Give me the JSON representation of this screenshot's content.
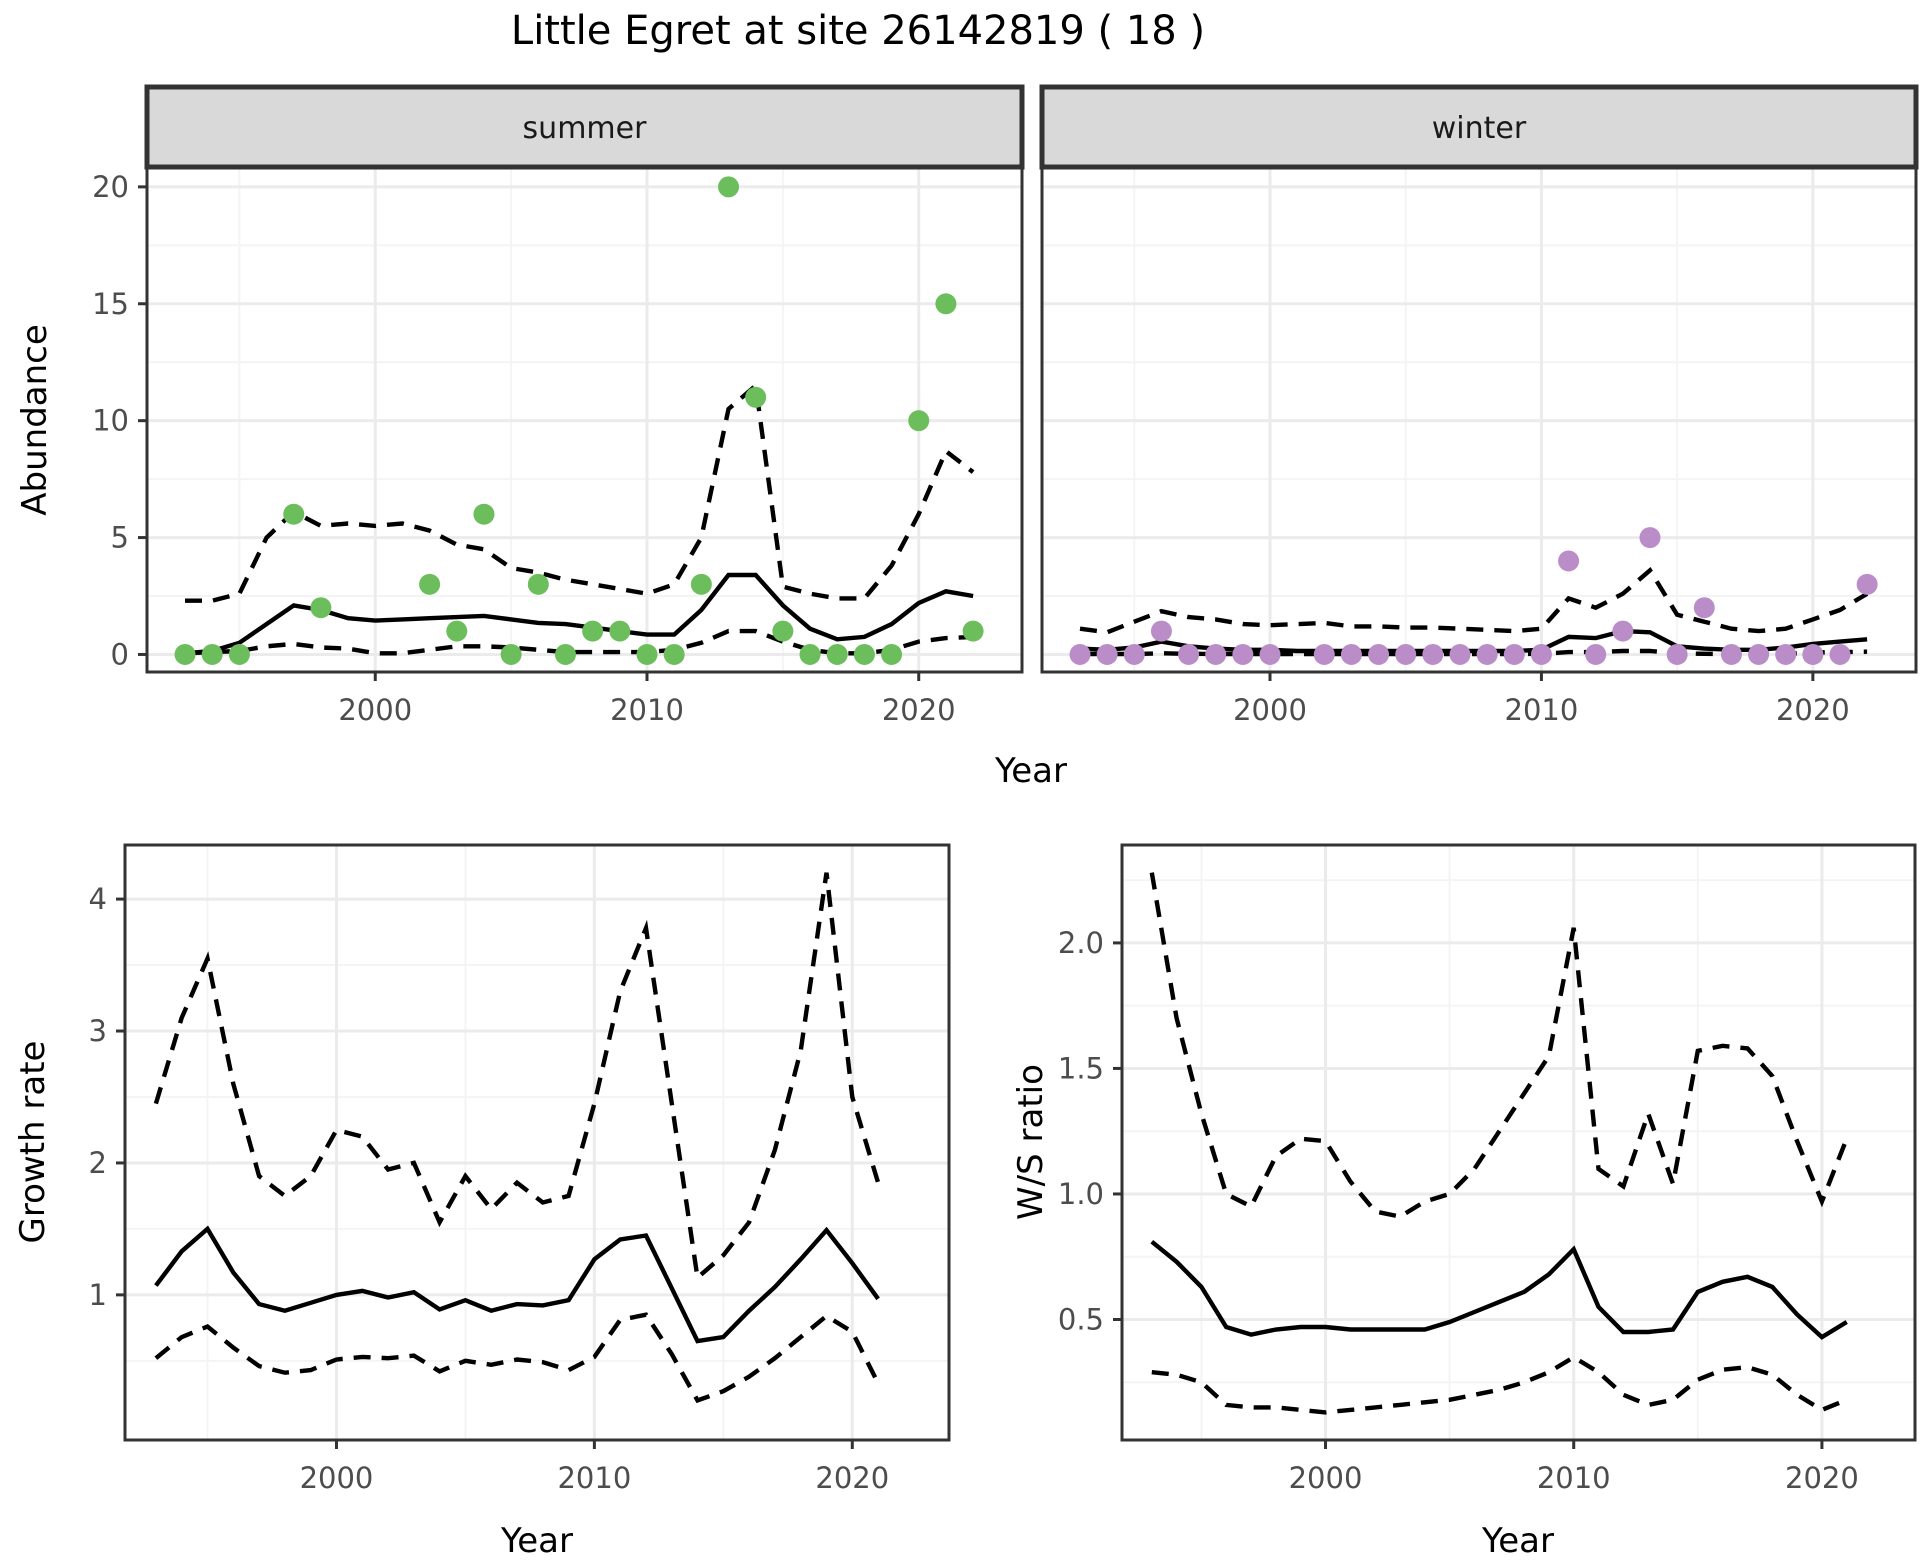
{
  "title": "Little Egret at site 26142819 ( 18 )",
  "colors": {
    "summer_point": "#6cbe5c",
    "winter_point": "#ba8dc9",
    "line": "#000000",
    "strip_fill": "#d9d9d9",
    "panel_border": "#333333",
    "grid_major": "#ebebeb",
    "grid_minor": "#f4f4f4",
    "tick_text": "#4d4d4d"
  },
  "chart_data": [
    {
      "id": "abundance-summer",
      "type": "scatter",
      "facet_label": "summer",
      "ylabel": "Abundance",
      "xlabel": "Year",
      "xlim": [
        1991.6,
        2023.8
      ],
      "ylim": [
        -0.75,
        20.85
      ],
      "xticks": [
        2000,
        2010,
        2020
      ],
      "xtick_labels": [
        "2000",
        "2010",
        "2020"
      ],
      "yticks": [
        0,
        5,
        10,
        15,
        20
      ],
      "ytick_labels": [
        "0",
        "5",
        "10",
        "15",
        "20"
      ],
      "xminor": [
        1995,
        2005,
        2015
      ],
      "yminor": [
        2.5,
        7.5,
        12.5,
        17.5
      ],
      "x": [
        1993,
        1994,
        1995,
        1996,
        1997,
        1998,
        1999,
        2000,
        2001,
        2002,
        2003,
        2004,
        2005,
        2006,
        2007,
        2008,
        2009,
        2010,
        2011,
        2012,
        2013,
        2014,
        2015,
        2016,
        2017,
        2018,
        2019,
        2020,
        2021,
        2022
      ],
      "series": [
        {
          "name": "mean",
          "dash": false,
          "values": [
            0.05,
            0.15,
            0.5,
            1.3,
            2.1,
            1.9,
            1.55,
            1.45,
            1.5,
            1.55,
            1.6,
            1.65,
            1.5,
            1.35,
            1.3,
            1.15,
            1.0,
            0.85,
            0.85,
            1.9,
            3.4,
            3.4,
            2.1,
            1.1,
            0.65,
            0.75,
            1.3,
            2.2,
            2.7,
            2.5
          ]
        },
        {
          "name": "upper-ci",
          "dash": true,
          "values": [
            2.3,
            2.3,
            2.6,
            5.0,
            6.1,
            5.5,
            5.6,
            5.5,
            5.6,
            5.3,
            4.7,
            4.5,
            3.7,
            3.5,
            3.2,
            3.0,
            2.8,
            2.6,
            3.0,
            5.0,
            10.5,
            11.5,
            2.9,
            2.6,
            2.4,
            2.4,
            3.8,
            6.0,
            8.7,
            7.8
          ]
        },
        {
          "name": "lower-ci",
          "dash": true,
          "values": [
            0.05,
            0.1,
            0.15,
            0.35,
            0.45,
            0.3,
            0.25,
            0.05,
            0.05,
            0.2,
            0.35,
            0.35,
            0.3,
            0.2,
            0.1,
            0.1,
            0.1,
            0.1,
            0.2,
            0.5,
            1.0,
            1.0,
            0.55,
            0.2,
            0.05,
            0.05,
            0.2,
            0.55,
            0.7,
            0.75
          ]
        }
      ],
      "points": [
        [
          1993,
          0
        ],
        [
          1994,
          0
        ],
        [
          1995,
          0
        ],
        [
          1997,
          6
        ],
        [
          1998,
          2
        ],
        [
          2002,
          3
        ],
        [
          2003,
          1
        ],
        [
          2004,
          6
        ],
        [
          2005,
          0
        ],
        [
          2006,
          3
        ],
        [
          2007,
          0
        ],
        [
          2008,
          1
        ],
        [
          2009,
          1
        ],
        [
          2010,
          0
        ],
        [
          2011,
          0
        ],
        [
          2012,
          3
        ],
        [
          2013,
          20
        ],
        [
          2014,
          11
        ],
        [
          2015,
          1
        ],
        [
          2016,
          0
        ],
        [
          2017,
          0
        ],
        [
          2018,
          0
        ],
        [
          2019,
          0
        ],
        [
          2020,
          10
        ],
        [
          2021,
          15
        ],
        [
          2022,
          1
        ]
      ],
      "point_color": "#6cbe5c"
    },
    {
      "id": "abundance-winter",
      "type": "scatter",
      "facet_label": "winter",
      "ylabel": "",
      "xlabel": "",
      "xlim": [
        1991.6,
        2023.8
      ],
      "ylim": [
        -0.75,
        20.85
      ],
      "xticks": [
        2000,
        2010,
        2020
      ],
      "xtick_labels": [
        "2000",
        "2010",
        "2020"
      ],
      "yticks": [
        0,
        5,
        10,
        15,
        20
      ],
      "ytick_labels": [
        "0",
        "5",
        "10",
        "15",
        "20"
      ],
      "xminor": [
        1995,
        2005,
        2015
      ],
      "yminor": [
        2.5,
        7.5,
        12.5,
        17.5
      ],
      "x": [
        1993,
        1994,
        1995,
        1996,
        1997,
        1998,
        1999,
        2000,
        2001,
        2002,
        2003,
        2004,
        2005,
        2006,
        2007,
        2008,
        2009,
        2010,
        2011,
        2012,
        2013,
        2014,
        2015,
        2016,
        2017,
        2018,
        2019,
        2020,
        2021,
        2022
      ],
      "series": [
        {
          "name": "mean",
          "dash": false,
          "values": [
            0.25,
            0.2,
            0.3,
            0.55,
            0.35,
            0.25,
            0.2,
            0.2,
            0.15,
            0.15,
            0.15,
            0.15,
            0.15,
            0.15,
            0.15,
            0.15,
            0.15,
            0.2,
            0.75,
            0.7,
            1.0,
            0.95,
            0.35,
            0.25,
            0.2,
            0.2,
            0.3,
            0.45,
            0.55,
            0.65
          ]
        },
        {
          "name": "upper-ci",
          "dash": true,
          "values": [
            1.1,
            0.95,
            1.4,
            1.85,
            1.6,
            1.5,
            1.3,
            1.25,
            1.3,
            1.35,
            1.2,
            1.2,
            1.15,
            1.15,
            1.1,
            1.05,
            1.0,
            1.1,
            2.4,
            2.0,
            2.6,
            3.6,
            1.7,
            1.4,
            1.1,
            1.0,
            1.1,
            1.5,
            1.9,
            2.6
          ]
        },
        {
          "name": "lower-ci",
          "dash": true,
          "values": [
            0.02,
            0.02,
            0.02,
            0.05,
            0.03,
            0.02,
            0.02,
            0.02,
            0.02,
            0.02,
            0.02,
            0.02,
            0.02,
            0.02,
            0.02,
            0.02,
            0.02,
            0.03,
            0.1,
            0.1,
            0.15,
            0.15,
            0.05,
            0.03,
            0.02,
            0.02,
            0.03,
            0.08,
            0.1,
            0.12
          ]
        }
      ],
      "points": [
        [
          1993,
          0
        ],
        [
          1994,
          0
        ],
        [
          1995,
          0
        ],
        [
          1996,
          1
        ],
        [
          1997,
          0
        ],
        [
          1998,
          0
        ],
        [
          1999,
          0
        ],
        [
          2000,
          0
        ],
        [
          2002,
          0
        ],
        [
          2003,
          0
        ],
        [
          2004,
          0
        ],
        [
          2005,
          0
        ],
        [
          2006,
          0
        ],
        [
          2007,
          0
        ],
        [
          2008,
          0
        ],
        [
          2009,
          0
        ],
        [
          2010,
          0
        ],
        [
          2011,
          4
        ],
        [
          2012,
          0
        ],
        [
          2013,
          1
        ],
        [
          2014,
          5
        ],
        [
          2015,
          0
        ],
        [
          2016,
          2
        ],
        [
          2017,
          0
        ],
        [
          2018,
          0
        ],
        [
          2019,
          0
        ],
        [
          2020,
          0
        ],
        [
          2021,
          0
        ],
        [
          2022,
          3
        ]
      ],
      "point_color": "#ba8dc9"
    },
    {
      "id": "growth-rate",
      "type": "line",
      "facet_label": "",
      "ylabel": "Growth rate",
      "xlabel": "Year",
      "xlim": [
        1991.8,
        2023.75
      ],
      "ylim": [
        -0.1,
        4.41
      ],
      "xticks": [
        2000,
        2010,
        2020
      ],
      "xtick_labels": [
        "2000",
        "2010",
        "2020"
      ],
      "yticks": [
        1,
        2,
        3,
        4
      ],
      "ytick_labels": [
        "1",
        "2",
        "3",
        "4"
      ],
      "xminor": [
        1995,
        2005,
        2015
      ],
      "yminor": [
        0.5,
        1.5,
        2.5,
        3.5
      ],
      "x": [
        1993,
        1994,
        1995,
        1996,
        1997,
        1998,
        1999,
        2000,
        2001,
        2002,
        2003,
        2004,
        2005,
        2006,
        2007,
        2008,
        2009,
        2010,
        2011,
        2012,
        2013,
        2014,
        2015,
        2016,
        2017,
        2018,
        2019,
        2020,
        2021
      ],
      "series": [
        {
          "name": "median",
          "dash": false,
          "values": [
            1.07,
            1.33,
            1.5,
            1.17,
            0.93,
            0.88,
            0.94,
            1.0,
            1.03,
            0.98,
            1.02,
            0.89,
            0.96,
            0.88,
            0.93,
            0.92,
            0.96,
            1.27,
            1.42,
            1.45,
            1.05,
            0.65,
            0.68,
            0.88,
            1.06,
            1.27,
            1.49,
            1.24,
            0.97
          ]
        },
        {
          "name": "upper-ci",
          "dash": true,
          "values": [
            2.45,
            3.1,
            3.55,
            2.6,
            1.9,
            1.75,
            1.9,
            2.25,
            2.2,
            1.95,
            2.0,
            1.55,
            1.9,
            1.65,
            1.85,
            1.7,
            1.75,
            2.45,
            3.3,
            3.78,
            2.45,
            1.13,
            1.3,
            1.55,
            2.1,
            2.85,
            4.2,
            2.5,
            1.85
          ]
        },
        {
          "name": "lower-ci",
          "dash": true,
          "values": [
            0.52,
            0.68,
            0.76,
            0.6,
            0.46,
            0.41,
            0.43,
            0.51,
            0.53,
            0.52,
            0.54,
            0.42,
            0.5,
            0.47,
            0.51,
            0.49,
            0.43,
            0.53,
            0.81,
            0.85,
            0.55,
            0.2,
            0.27,
            0.38,
            0.52,
            0.68,
            0.84,
            0.72,
            0.33
          ]
        }
      ],
      "points": [],
      "point_color": "#000000"
    },
    {
      "id": "ws-ratio",
      "type": "line",
      "facet_label": "",
      "ylabel": "W/S ratio",
      "xlabel": "Year",
      "xlim": [
        1991.8,
        2023.75
      ],
      "ylim": [
        0.02,
        2.39
      ],
      "xticks": [
        2000,
        2010,
        2020
      ],
      "xtick_labels": [
        "2000",
        "2010",
        "2020"
      ],
      "yticks": [
        0.5,
        1.0,
        1.5,
        2.0
      ],
      "ytick_labels": [
        "0.5",
        "1.0",
        "1.5",
        "2.0"
      ],
      "xminor": [
        1995,
        2005,
        2015
      ],
      "yminor": [
        0.25,
        0.75,
        1.25,
        1.75,
        2.25
      ],
      "x": [
        1993,
        1994,
        1995,
        1996,
        1997,
        1998,
        1999,
        2000,
        2001,
        2002,
        2003,
        2004,
        2005,
        2006,
        2007,
        2008,
        2009,
        2010,
        2011,
        2012,
        2013,
        2014,
        2015,
        2016,
        2017,
        2018,
        2019,
        2020,
        2021
      ],
      "series": [
        {
          "name": "median",
          "dash": false,
          "values": [
            0.81,
            0.73,
            0.63,
            0.47,
            0.44,
            0.46,
            0.47,
            0.47,
            0.46,
            0.46,
            0.46,
            0.46,
            0.49,
            0.53,
            0.57,
            0.61,
            0.68,
            0.78,
            0.55,
            0.45,
            0.45,
            0.46,
            0.61,
            0.65,
            0.67,
            0.63,
            0.52,
            0.43,
            0.49
          ]
        },
        {
          "name": "upper-ci",
          "dash": true,
          "values": [
            2.28,
            1.7,
            1.32,
            1.0,
            0.95,
            1.15,
            1.22,
            1.21,
            1.05,
            0.93,
            0.91,
            0.97,
            1.0,
            1.1,
            1.25,
            1.4,
            1.55,
            2.06,
            1.1,
            1.03,
            1.32,
            1.04,
            1.57,
            1.59,
            1.58,
            1.47,
            1.21,
            0.97,
            1.22
          ]
        },
        {
          "name": "lower-ci",
          "dash": true,
          "values": [
            0.29,
            0.28,
            0.25,
            0.16,
            0.15,
            0.15,
            0.14,
            0.13,
            0.14,
            0.15,
            0.16,
            0.17,
            0.18,
            0.2,
            0.22,
            0.25,
            0.29,
            0.35,
            0.29,
            0.2,
            0.16,
            0.18,
            0.26,
            0.3,
            0.31,
            0.28,
            0.2,
            0.14,
            0.18
          ]
        }
      ],
      "points": [],
      "point_color": "#000000"
    }
  ]
}
